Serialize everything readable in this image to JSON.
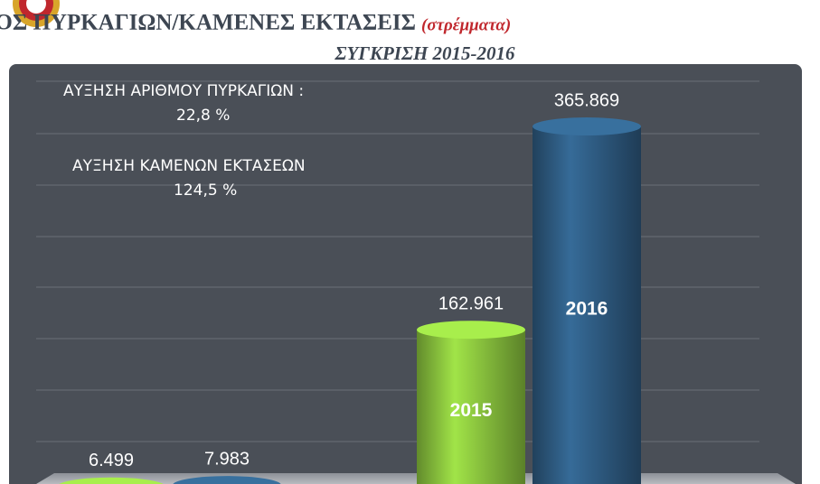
{
  "chart_data": {
    "type": "bar",
    "title": "ΑΡΙΘΜΟΣ ΠΥΡΚΑΓΙΩΝ/ΚΑΜΕΝΕΣ ΕΚΤΑΣΕΙΣ",
    "title_note": "(στρέμματα)",
    "subtitle": "ΣΥΓΚΡΙΣΗ 2015-2016",
    "annotations": [
      "ΑΥΞΗΣΗ ΑΡΙΘΜΟΥ ΠΥΡΚΑΓΙΩΝ :",
      "22,8 %",
      "ΑΥΞΗΣΗ ΚΑΜΕΝΩΝ ΕΚΤΑΣΕΩΝ",
      "124,5 %"
    ],
    "categories": [
      null,
      null
    ],
    "series": [
      {
        "name": "2015",
        "color": "#8cc63f",
        "values": [
          6499,
          162961
        ],
        "value_labels": [
          "6.499",
          "162.961"
        ]
      },
      {
        "name": "2016",
        "color": "#2f5d84",
        "values": [
          7983,
          365869
        ],
        "value_labels": [
          "7.983",
          "365.869"
        ]
      }
    ],
    "ylim": [
      0,
      420000
    ]
  }
}
